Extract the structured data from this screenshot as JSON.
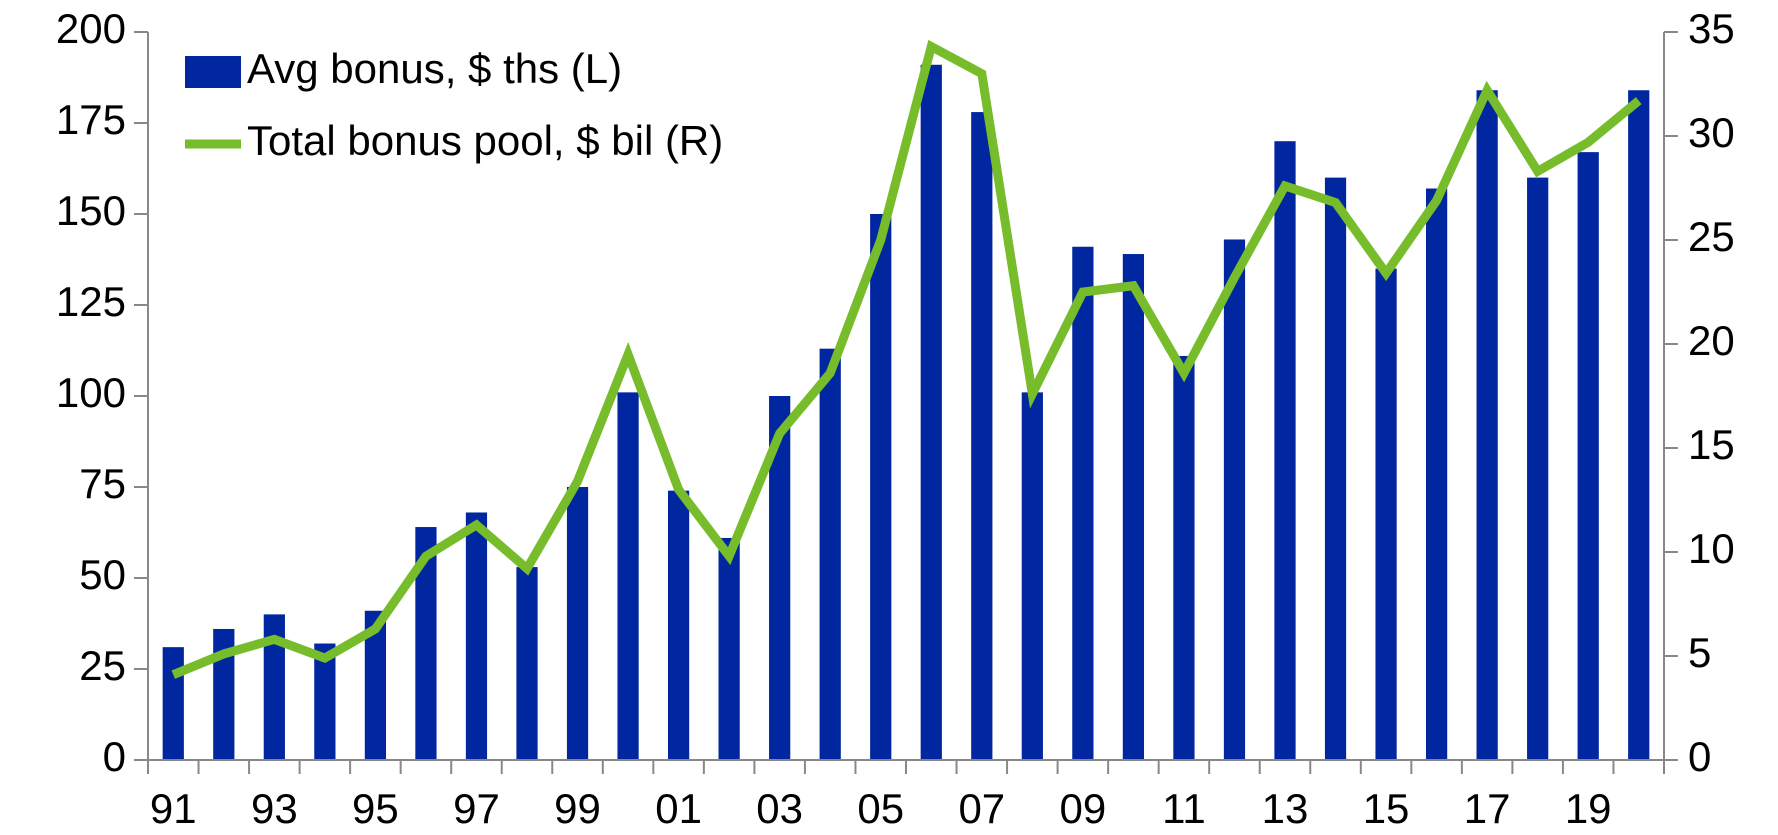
{
  "chart_data": {
    "type": "bar_line",
    "categories": [
      "91",
      null,
      "93",
      null,
      "95",
      null,
      "97",
      null,
      "99",
      null,
      "01",
      null,
      "03",
      null,
      "05",
      null,
      "07",
      null,
      "09",
      null,
      "11",
      null,
      "13",
      null,
      "15",
      null,
      "17",
      null,
      "19",
      null
    ],
    "series": [
      {
        "name": "Avg bonus, $ ths (L)",
        "color": "#0026a0",
        "type": "bar",
        "axis": "y",
        "values": [
          31,
          36,
          40,
          32,
          41,
          64,
          68,
          53,
          75,
          101,
          74,
          61,
          100,
          113,
          150,
          191,
          178,
          101,
          141,
          139,
          111,
          143,
          170,
          160,
          135,
          157,
          184,
          160,
          167,
          184
        ]
      },
      {
        "name": "Total bonus pool, $ bil (R)",
        "color": "#77bc2a",
        "type": "line",
        "axis": "y2",
        "values": [
          4.1,
          5.1,
          5.8,
          4.9,
          6.3,
          9.8,
          11.3,
          9.2,
          13.4,
          19.5,
          13.0,
          9.8,
          15.7,
          18.6,
          25.0,
          34.3,
          33.0,
          17.6,
          22.5,
          22.8,
          18.6,
          23.2,
          27.6,
          26.8,
          23.4,
          26.9,
          32.2,
          28.3,
          29.7,
          31.7
        ]
      }
    ],
    "ylim": [
      0,
      200
    ],
    "yticks": [
      0,
      25,
      50,
      75,
      100,
      125,
      150,
      175,
      200
    ],
    "y2lim": [
      0,
      35
    ],
    "y2ticks": [
      0,
      5,
      10,
      15,
      20,
      25,
      30,
      35
    ],
    "legend": "top-left",
    "grid": false
  }
}
